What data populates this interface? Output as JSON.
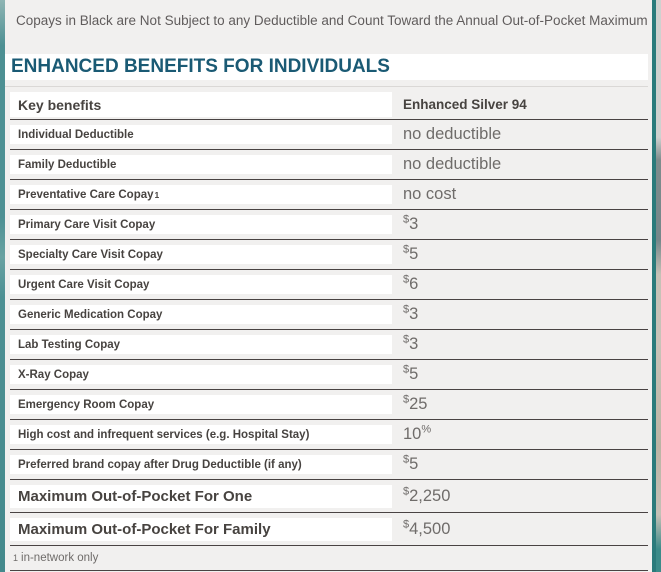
{
  "note": "Copays in Black are Not Subject to any Deductible and Count Toward the Annual Out-of-Pocket Maximum",
  "heading": "ENHANCED BENEFITS FOR INDIVIDUALS",
  "table": {
    "label_header": "Key benefits",
    "value_header": "Enhanced Silver 94",
    "rows": [
      {
        "label": "Individual Deductible",
        "marker": "",
        "pre_sup": "",
        "value": "no deductible",
        "post_sup": "",
        "emphasis": false
      },
      {
        "label": "Family Deductible",
        "marker": "",
        "pre_sup": "",
        "value": "no deductible",
        "post_sup": "",
        "emphasis": false
      },
      {
        "label": "Preventative Care Copay",
        "marker": "1",
        "pre_sup": "",
        "value": "no cost",
        "post_sup": "",
        "emphasis": false
      },
      {
        "label": "Primary Care Visit Copay",
        "marker": "",
        "pre_sup": "$",
        "value": "3",
        "post_sup": "",
        "emphasis": false
      },
      {
        "label": "Specialty Care Visit Copay",
        "marker": "",
        "pre_sup": "$",
        "value": "5",
        "post_sup": "",
        "emphasis": false
      },
      {
        "label": "Urgent Care Visit Copay",
        "marker": "",
        "pre_sup": "$",
        "value": "6",
        "post_sup": "",
        "emphasis": false
      },
      {
        "label": "Generic Medication Copay",
        "marker": "",
        "pre_sup": "$",
        "value": "3",
        "post_sup": "",
        "emphasis": false
      },
      {
        "label": "Lab Testing Copay",
        "marker": "",
        "pre_sup": "$",
        "value": "3",
        "post_sup": "",
        "emphasis": false
      },
      {
        "label": "X-Ray Copay",
        "marker": "",
        "pre_sup": "$",
        "value": "5",
        "post_sup": "",
        "emphasis": false
      },
      {
        "label": "Emergency Room Copay",
        "marker": "",
        "pre_sup": "$",
        "value": "25",
        "post_sup": "",
        "emphasis": false
      },
      {
        "label": "High cost and infrequent services (e.g. Hospital Stay)",
        "marker": "",
        "pre_sup": "",
        "value": "10",
        "post_sup": "%",
        "emphasis": false
      },
      {
        "label": "Preferred brand copay after Drug Deductible (if any)",
        "marker": "",
        "pre_sup": "$",
        "value": "5",
        "post_sup": "",
        "emphasis": false
      },
      {
        "label": "Maximum Out-of-Pocket For One",
        "marker": "",
        "pre_sup": "$",
        "value": "2,250",
        "post_sup": "",
        "emphasis": true
      },
      {
        "label": "Maximum Out-of-Pocket For Family",
        "marker": "",
        "pre_sup": "$",
        "value": "4,500",
        "post_sup": "",
        "emphasis": true
      }
    ],
    "footnote_marker": "1",
    "footnote": "in-network only"
  },
  "colors": {
    "accent_heading": "#1a5a74",
    "page_edge_teal": "#2a7b7b",
    "panel_bg": "#f1f0ef",
    "row_line": "#494343",
    "label_text": "#474340",
    "value_text": "#6f6c6a",
    "background_teal": "#4d9093"
  }
}
